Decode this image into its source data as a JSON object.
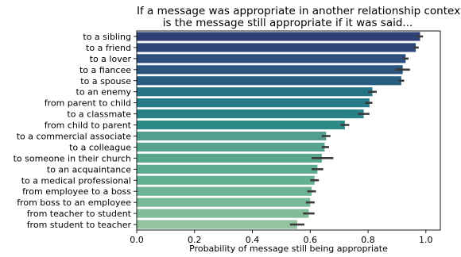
{
  "chart_data": {
    "type": "bar",
    "orientation": "horizontal",
    "title": "If a message was appropriate in another relationship context,\nis the message still appropriate if it was said...",
    "title_lines": [
      "If a message was appropriate in another relationship context,",
      "is the message still appropriate if it was said..."
    ],
    "xlabel": "Probability of message still being appropriate",
    "ylabel": "",
    "xlim": [
      0.0,
      1.05
    ],
    "xticks": [
      "0.0",
      "0.2",
      "0.4",
      "0.6",
      "0.8",
      "1.0"
    ],
    "categories": [
      "to a sibling",
      "to a friend",
      "to a lover",
      "to a fiancee",
      "to a spouse",
      "to an enemy",
      "from parent to child",
      "to a classmate",
      "from child to parent",
      "to a commercial associate",
      "to a colleague",
      "to someone in their church",
      "to an acquaintance",
      "to a medical professional",
      "from employee to a boss",
      "from boss to an employee",
      "from teacher to student",
      "from student to teacher"
    ],
    "values": [
      0.98,
      0.965,
      0.93,
      0.92,
      0.915,
      0.815,
      0.805,
      0.785,
      0.72,
      0.655,
      0.65,
      0.64,
      0.625,
      0.615,
      0.605,
      0.6,
      0.595,
      0.555
    ],
    "error": [
      [
        0.97,
        0.99
      ],
      [
        0.955,
        0.975
      ],
      [
        0.92,
        0.94
      ],
      [
        0.895,
        0.945
      ],
      [
        0.905,
        0.925
      ],
      [
        0.8,
        0.83
      ],
      [
        0.79,
        0.815
      ],
      [
        0.765,
        0.805
      ],
      [
        0.705,
        0.735
      ],
      [
        0.64,
        0.67
      ],
      [
        0.64,
        0.665
      ],
      [
        0.605,
        0.68
      ],
      [
        0.605,
        0.645
      ],
      [
        0.6,
        0.63
      ],
      [
        0.59,
        0.62
      ],
      [
        0.585,
        0.615
      ],
      [
        0.575,
        0.615
      ],
      [
        0.53,
        0.58
      ]
    ],
    "colors": [
      "#2e3f74",
      "#2f4778",
      "#2d4f7d",
      "#2b5680",
      "#2a5d83",
      "#277486",
      "#277a87",
      "#288187",
      "#2e8a87",
      "#549e8f",
      "#56a38f",
      "#5aa790",
      "#5dab91",
      "#63b093",
      "#6db496",
      "#76b898",
      "#82bd9a",
      "#93c39f"
    ],
    "grid": false,
    "legend": "none"
  }
}
